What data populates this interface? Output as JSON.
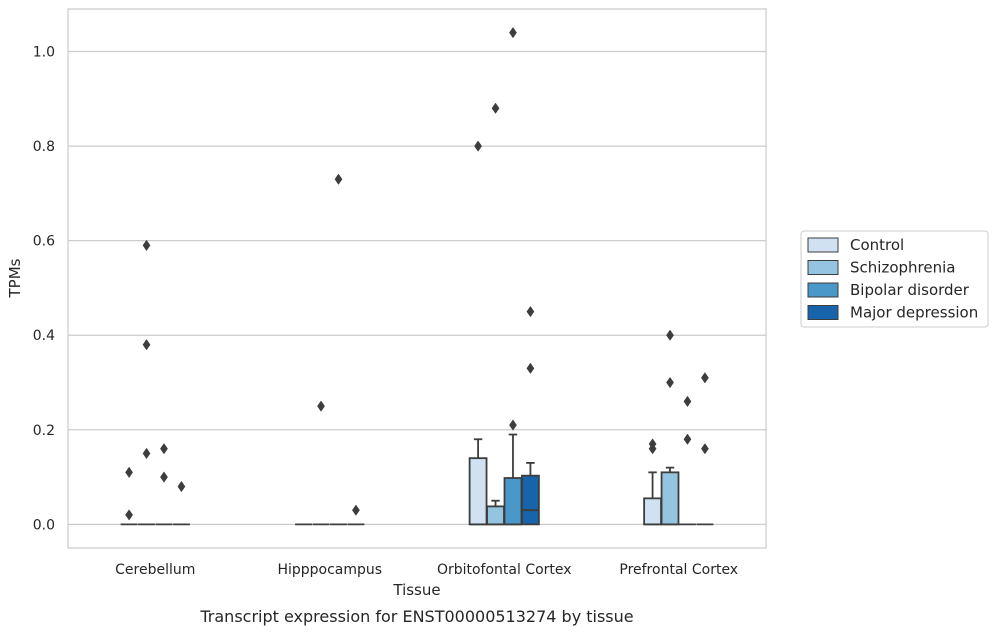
{
  "chart_data": {
    "type": "box",
    "title": "",
    "caption": "Transcript expression for ENST00000513274 by tissue",
    "xlabel": "Tissue",
    "ylabel": "TPMs",
    "ylim": [
      -0.05,
      1.09
    ],
    "yticks": [
      0.0,
      0.2,
      0.4,
      0.6,
      0.8,
      1.0
    ],
    "ytick_labels": [
      "0.0",
      "0.2",
      "0.4",
      "0.6",
      "0.8",
      "1.0"
    ],
    "grid": "horizontal",
    "legend_position": "right",
    "categories": [
      "Cerebellum",
      "Hipppocampus",
      "Orbitofontal Cortex",
      "Prefrontal Cortex"
    ],
    "series": [
      {
        "name": "Control",
        "color": "#d0e1f2",
        "boxes": [
          {
            "q1": 0,
            "median": 0,
            "q3": 0,
            "whisker_low": 0,
            "whisker_high": 0,
            "outliers": [
              0.02,
              0.11
            ]
          },
          {
            "q1": 0,
            "median": 0,
            "q3": 0,
            "whisker_low": 0,
            "whisker_high": 0,
            "outliers": []
          },
          {
            "q1": 0,
            "median": 0,
            "q3": 0.14,
            "whisker_low": 0,
            "whisker_high": 0.18,
            "outliers": [
              0.8
            ]
          },
          {
            "q1": 0,
            "median": 0,
            "q3": 0.055,
            "whisker_low": 0,
            "whisker_high": 0.11,
            "outliers": [
              0.16,
              0.17
            ]
          }
        ]
      },
      {
        "name": "Schizophrenia",
        "color": "#94c4df",
        "boxes": [
          {
            "q1": 0,
            "median": 0,
            "q3": 0,
            "whisker_low": 0,
            "whisker_high": 0,
            "outliers": [
              0.15,
              0.38,
              0.59
            ]
          },
          {
            "q1": 0,
            "median": 0,
            "q3": 0,
            "whisker_low": 0,
            "whisker_high": 0,
            "outliers": [
              0.25
            ]
          },
          {
            "q1": 0,
            "median": 0,
            "q3": 0.038,
            "whisker_low": 0,
            "whisker_high": 0.05,
            "outliers": [
              0.88
            ]
          },
          {
            "q1": 0,
            "median": 0,
            "q3": 0.11,
            "whisker_low": 0,
            "whisker_high": 0.12,
            "outliers": [
              0.4,
              0.3
            ]
          }
        ]
      },
      {
        "name": "Bipolar disorder",
        "color": "#4a98c9",
        "boxes": [
          {
            "q1": 0,
            "median": 0,
            "q3": 0,
            "whisker_low": 0,
            "whisker_high": 0,
            "outliers": [
              0.16,
              0.1
            ]
          },
          {
            "q1": 0,
            "median": 0,
            "q3": 0,
            "whisker_low": 0,
            "whisker_high": 0,
            "outliers": [
              0.73
            ]
          },
          {
            "q1": 0,
            "median": 0,
            "q3": 0.098,
            "whisker_low": 0,
            "whisker_high": 0.19,
            "outliers": [
              1.04,
              0.21
            ]
          },
          {
            "q1": 0,
            "median": 0,
            "q3": 0,
            "whisker_low": 0,
            "whisker_high": 0,
            "outliers": [
              0.18,
              0.26
            ]
          }
        ]
      },
      {
        "name": "Major depression",
        "color": "#1764ab",
        "boxes": [
          {
            "q1": 0,
            "median": 0,
            "q3": 0,
            "whisker_low": 0,
            "whisker_high": 0,
            "outliers": [
              0.08
            ]
          },
          {
            "q1": 0,
            "median": 0,
            "q3": 0,
            "whisker_low": 0,
            "whisker_high": 0,
            "outliers": [
              0.03
            ]
          },
          {
            "q1": 0,
            "median": 0.03,
            "q3": 0.103,
            "whisker_low": 0,
            "whisker_high": 0.13,
            "outliers": [
              0.45,
              0.33
            ]
          },
          {
            "q1": 0,
            "median": 0,
            "q3": 0,
            "whisker_low": 0,
            "whisker_high": 0,
            "outliers": [
              0.31,
              0.16
            ]
          }
        ]
      }
    ]
  }
}
